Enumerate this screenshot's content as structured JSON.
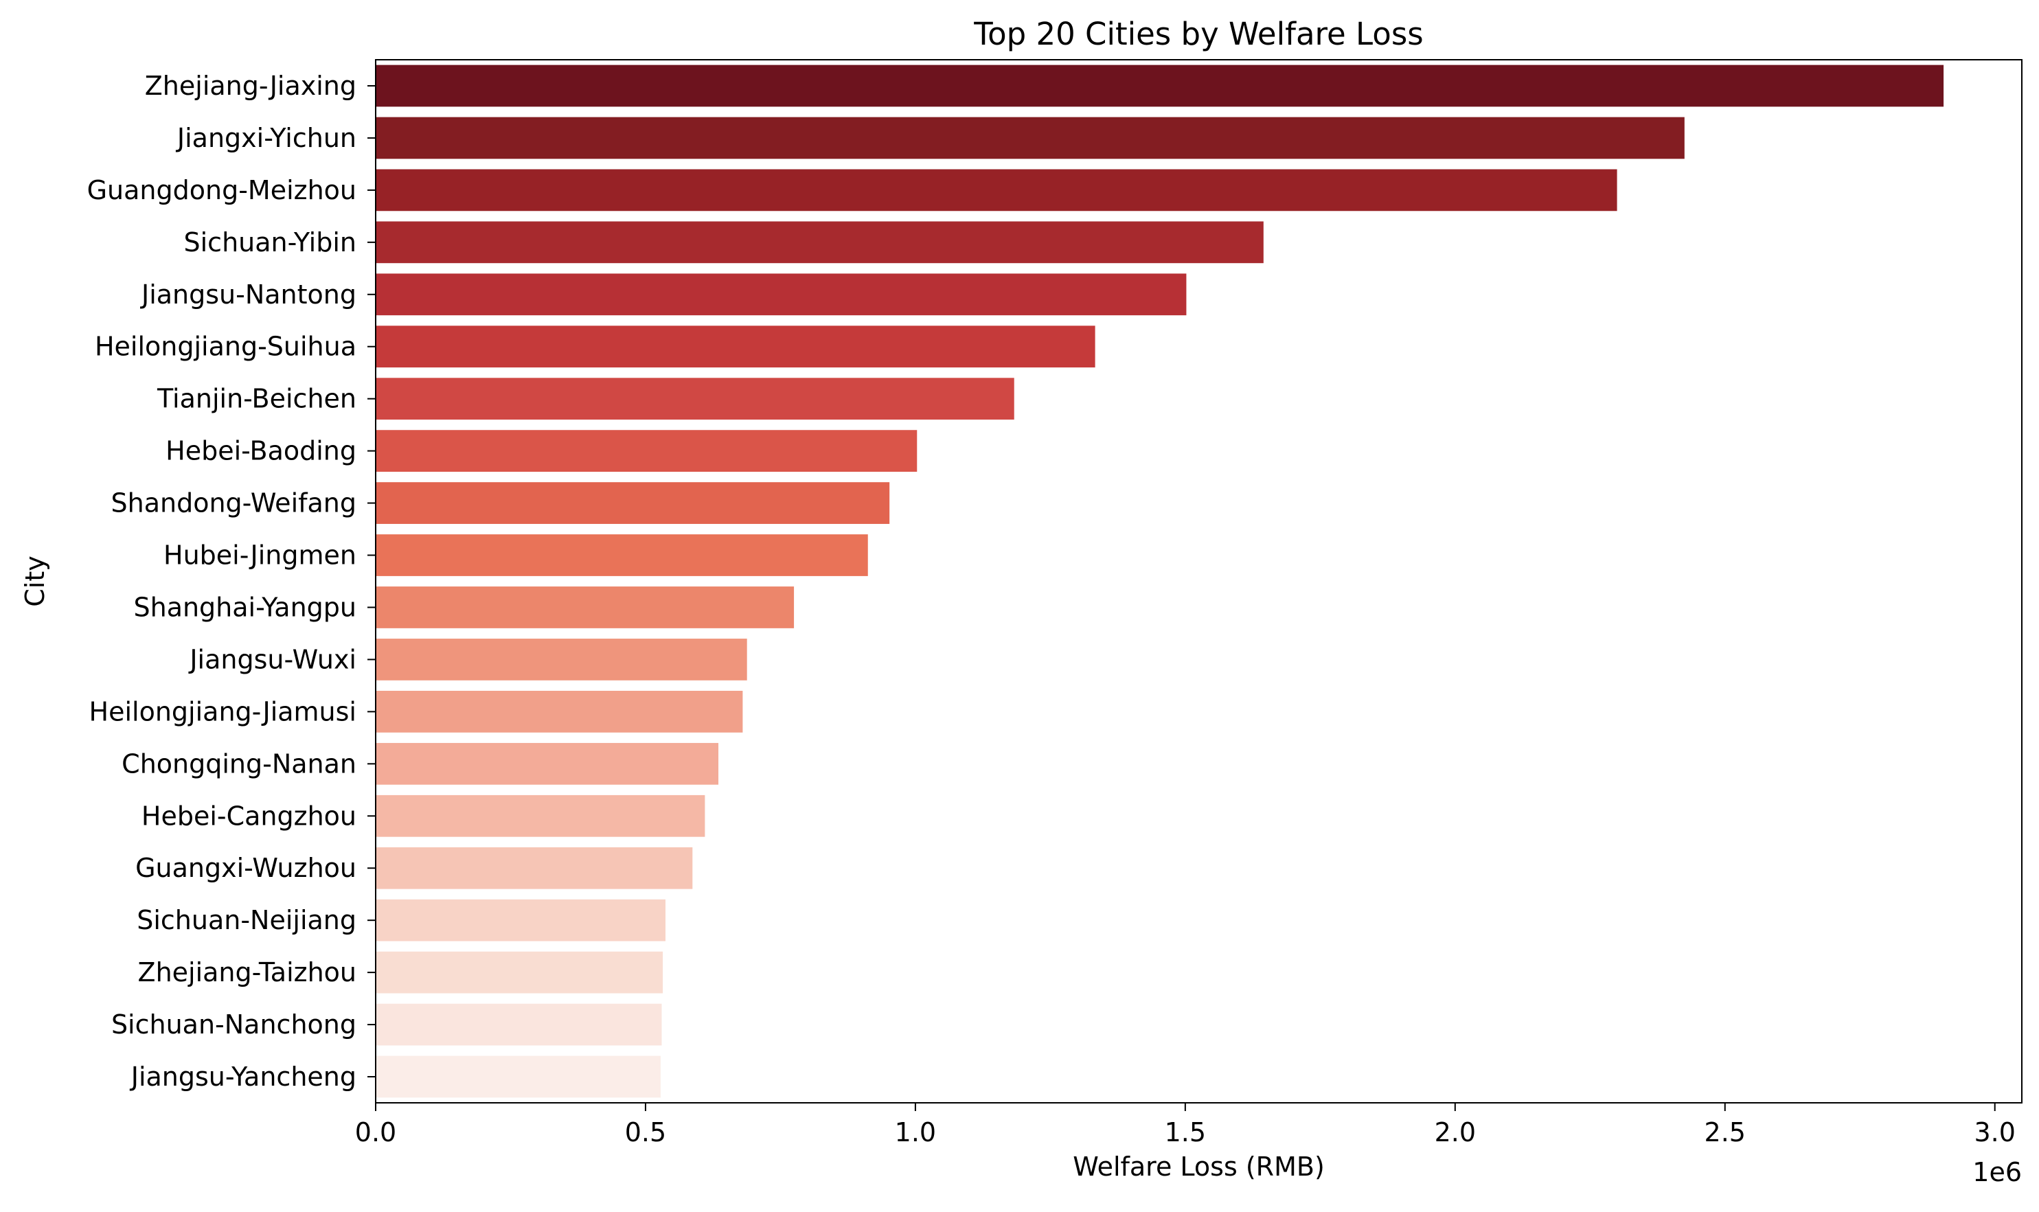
{
  "chart_data": {
    "type": "bar",
    "orientation": "horizontal",
    "title": "Top 20 Cities by Welfare Loss",
    "xlabel": "Welfare Loss (RMB)",
    "ylabel": "City",
    "x_scale_label": "1e6",
    "xlim": [
      0,
      3.05
    ],
    "xticks": [
      "0.0",
      "0.5",
      "1.0",
      "1.5",
      "2.0",
      "2.5",
      "3.0"
    ],
    "grid": false,
    "legend": "none",
    "categories": [
      "Zhejiang-Jiaxing",
      "Jiangxi-Yichun",
      "Guangdong-Meizhou",
      "Sichuan-Yibin",
      "Jiangsu-Nantong",
      "Heilongjiang-Suihua",
      "Tianjin-Beichen",
      "Hebei-Baoding",
      "Shandong-Weifang",
      "Hubei-Jingmen",
      "Shanghai-Yangpu",
      "Jiangsu-Wuxi",
      "Heilongjiang-Jiamusi",
      "Chongqing-Nanan",
      "Hebei-Cangzhou",
      "Guangxi-Wuzhou",
      "Sichuan-Neijiang",
      "Zhejiang-Taizhou",
      "Sichuan-Nanchong",
      "Jiangsu-Yancheng"
    ],
    "values": [
      2.905,
      2.425,
      2.3,
      1.645,
      1.502,
      1.333,
      1.183,
      1.003,
      0.952,
      0.912,
      0.775,
      0.688,
      0.68,
      0.635,
      0.61,
      0.587,
      0.537,
      0.532,
      0.53,
      0.528
    ],
    "colors": [
      "#6d131e",
      "#831d22",
      "#972226",
      "#a72a2e",
      "#b73035",
      "#c53a3a",
      "#d04844",
      "#da5549",
      "#e2644f",
      "#e97358",
      "#ec866b",
      "#ef957c",
      "#f1a08a",
      "#f3ab98",
      "#f5b8a6",
      "#f6c5b5",
      "#f8d3c6",
      "#f9ddd2",
      "#fae5de",
      "#fbede8"
    ]
  }
}
